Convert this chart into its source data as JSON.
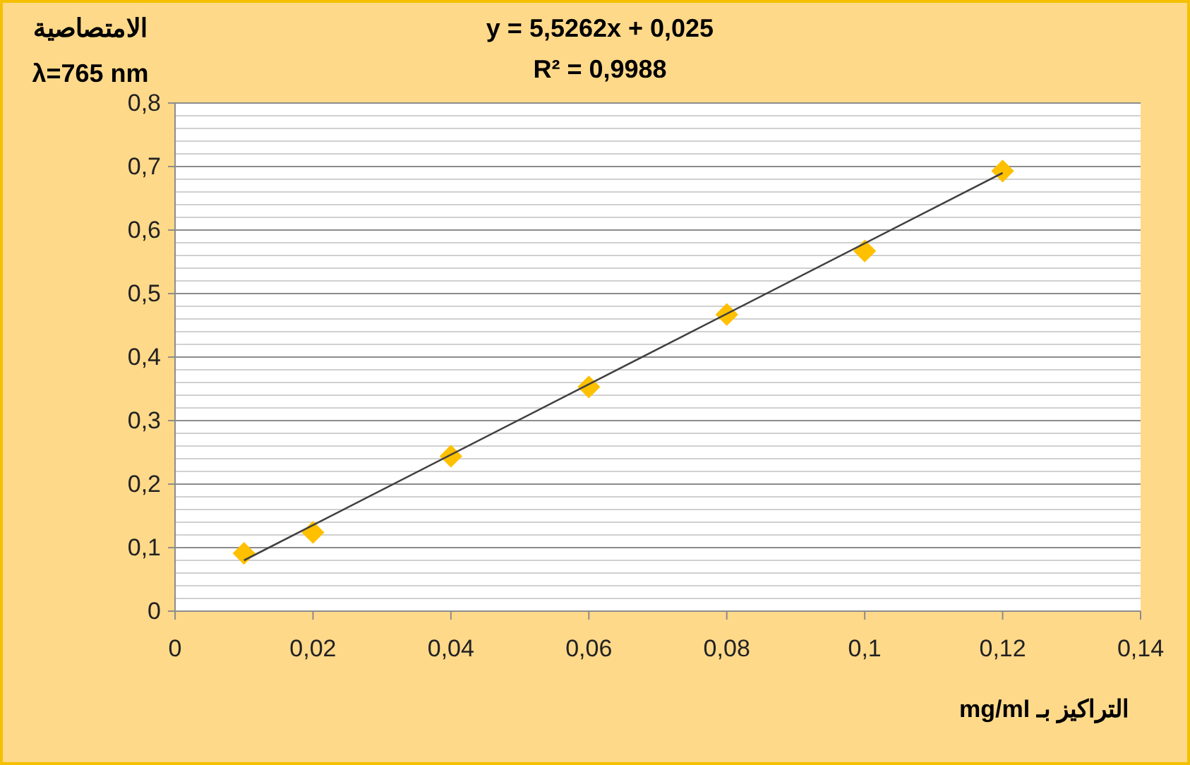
{
  "chart_data": {
    "type": "scatter",
    "xlabel": "التراكيز بـ  mg/ml",
    "ylabel": "الامتصاصية\nλ=765 nm",
    "annotations": [
      "y = 5,5262x + 0,025",
      "R² = 0,9988"
    ],
    "xlim": [
      0,
      0.14
    ],
    "xticks": [
      0,
      {
        "value": 0.02,
        "label": "0,02"
      },
      {
        "value": 0.04,
        "label": "0,04"
      },
      {
        "value": 0.06,
        "label": "0,06"
      },
      {
        "value": 0.08,
        "label": "0,08"
      },
      {
        "value": 0.1,
        "label": "0,1"
      },
      {
        "value": 0.12,
        "label": "0,12"
      },
      {
        "value": 0.14,
        "label": "0,14"
      }
    ],
    "ylim": [
      0,
      0.8
    ],
    "yticks": [
      0,
      {
        "value": 0.02,
        "label": null
      },
      {
        "value": 0.04,
        "label": null
      },
      {
        "value": 0.06,
        "label": null
      },
      {
        "value": 0.08,
        "label": null
      },
      {
        "value": 0.1,
        "label": "0,1"
      },
      {
        "value": 0.12,
        "label": null
      },
      {
        "value": 0.14,
        "label": null
      },
      {
        "value": 0.16,
        "label": null
      },
      {
        "value": 0.18,
        "label": null
      },
      {
        "value": 0.2,
        "label": "0,2"
      },
      {
        "value": 0.22,
        "label": null
      },
      {
        "value": 0.24,
        "label": null
      },
      {
        "value": 0.26,
        "label": null
      },
      {
        "value": 0.28,
        "label": null
      },
      {
        "value": 0.3,
        "label": "0,3"
      },
      {
        "value": 0.32,
        "label": null
      },
      {
        "value": 0.34,
        "label": null
      },
      {
        "value": 0.36,
        "label": null
      },
      {
        "value": 0.38,
        "label": null
      },
      {
        "value": 0.4,
        "label": "0,4"
      },
      {
        "value": 0.42,
        "label": null
      },
      {
        "value": 0.44,
        "label": null
      },
      {
        "value": 0.46,
        "label": null
      },
      {
        "value": 0.48,
        "label": null
      },
      {
        "value": 0.5,
        "label": "0,5"
      },
      {
        "value": 0.52,
        "label": null
      },
      {
        "value": 0.54,
        "label": null
      },
      {
        "value": 0.56,
        "label": null
      },
      {
        "value": 0.58,
        "label": null
      },
      {
        "value": 0.6,
        "label": "0,6"
      },
      {
        "value": 0.62,
        "label": null
      },
      {
        "value": 0.64,
        "label": null
      },
      {
        "value": 0.66,
        "label": null
      },
      {
        "value": 0.68,
        "label": null
      },
      {
        "value": 0.7,
        "label": "0,7"
      },
      {
        "value": 0.72,
        "label": null
      },
      {
        "value": 0.74,
        "label": null
      },
      {
        "value": 0.76,
        "label": null
      },
      {
        "value": 0.78,
        "label": null
      },
      {
        "value": 0.8,
        "label": "0,8"
      }
    ],
    "grid": "y",
    "series": [
      {
        "marker": "diamond",
        "color": "#ffc000",
        "x": [
          0.01,
          0.02,
          0.04,
          0.06,
          0.08,
          0.1,
          0.12
        ],
        "values": [
          0.091,
          0.124,
          0.244,
          0.353,
          0.467,
          0.567,
          0.693
        ]
      },
      {
        "type": "line",
        "color": "#404040",
        "x": [
          0.01,
          0.12
        ],
        "values": [
          0.08,
          0.69
        ],
        "line_style": "solid"
      }
    ]
  }
}
